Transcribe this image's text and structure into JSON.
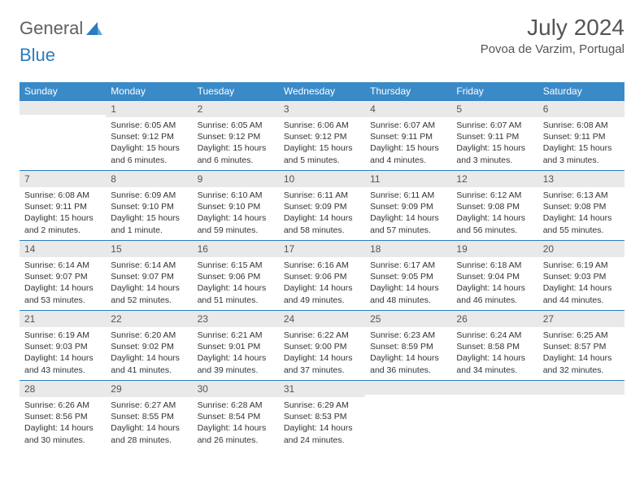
{
  "brand": {
    "part1": "General",
    "part2": "Blue"
  },
  "title": "July 2024",
  "location": "Povoa de Varzim, Portugal",
  "colors": {
    "header_bg": "#3a8ac8",
    "daynum_bg": "#e9e9e9",
    "border": "#2b7bbf",
    "text": "#333333"
  },
  "weekdays": [
    "Sunday",
    "Monday",
    "Tuesday",
    "Wednesday",
    "Thursday",
    "Friday",
    "Saturday"
  ],
  "weeks": [
    [
      {
        "n": "",
        "sr": "",
        "ss": "",
        "dl": ""
      },
      {
        "n": "1",
        "sr": "Sunrise: 6:05 AM",
        "ss": "Sunset: 9:12 PM",
        "dl": "Daylight: 15 hours and 6 minutes."
      },
      {
        "n": "2",
        "sr": "Sunrise: 6:05 AM",
        "ss": "Sunset: 9:12 PM",
        "dl": "Daylight: 15 hours and 6 minutes."
      },
      {
        "n": "3",
        "sr": "Sunrise: 6:06 AM",
        "ss": "Sunset: 9:12 PM",
        "dl": "Daylight: 15 hours and 5 minutes."
      },
      {
        "n": "4",
        "sr": "Sunrise: 6:07 AM",
        "ss": "Sunset: 9:11 PM",
        "dl": "Daylight: 15 hours and 4 minutes."
      },
      {
        "n": "5",
        "sr": "Sunrise: 6:07 AM",
        "ss": "Sunset: 9:11 PM",
        "dl": "Daylight: 15 hours and 3 minutes."
      },
      {
        "n": "6",
        "sr": "Sunrise: 6:08 AM",
        "ss": "Sunset: 9:11 PM",
        "dl": "Daylight: 15 hours and 3 minutes."
      }
    ],
    [
      {
        "n": "7",
        "sr": "Sunrise: 6:08 AM",
        "ss": "Sunset: 9:11 PM",
        "dl": "Daylight: 15 hours and 2 minutes."
      },
      {
        "n": "8",
        "sr": "Sunrise: 6:09 AM",
        "ss": "Sunset: 9:10 PM",
        "dl": "Daylight: 15 hours and 1 minute."
      },
      {
        "n": "9",
        "sr": "Sunrise: 6:10 AM",
        "ss": "Sunset: 9:10 PM",
        "dl": "Daylight: 14 hours and 59 minutes."
      },
      {
        "n": "10",
        "sr": "Sunrise: 6:11 AM",
        "ss": "Sunset: 9:09 PM",
        "dl": "Daylight: 14 hours and 58 minutes."
      },
      {
        "n": "11",
        "sr": "Sunrise: 6:11 AM",
        "ss": "Sunset: 9:09 PM",
        "dl": "Daylight: 14 hours and 57 minutes."
      },
      {
        "n": "12",
        "sr": "Sunrise: 6:12 AM",
        "ss": "Sunset: 9:08 PM",
        "dl": "Daylight: 14 hours and 56 minutes."
      },
      {
        "n": "13",
        "sr": "Sunrise: 6:13 AM",
        "ss": "Sunset: 9:08 PM",
        "dl": "Daylight: 14 hours and 55 minutes."
      }
    ],
    [
      {
        "n": "14",
        "sr": "Sunrise: 6:14 AM",
        "ss": "Sunset: 9:07 PM",
        "dl": "Daylight: 14 hours and 53 minutes."
      },
      {
        "n": "15",
        "sr": "Sunrise: 6:14 AM",
        "ss": "Sunset: 9:07 PM",
        "dl": "Daylight: 14 hours and 52 minutes."
      },
      {
        "n": "16",
        "sr": "Sunrise: 6:15 AM",
        "ss": "Sunset: 9:06 PM",
        "dl": "Daylight: 14 hours and 51 minutes."
      },
      {
        "n": "17",
        "sr": "Sunrise: 6:16 AM",
        "ss": "Sunset: 9:06 PM",
        "dl": "Daylight: 14 hours and 49 minutes."
      },
      {
        "n": "18",
        "sr": "Sunrise: 6:17 AM",
        "ss": "Sunset: 9:05 PM",
        "dl": "Daylight: 14 hours and 48 minutes."
      },
      {
        "n": "19",
        "sr": "Sunrise: 6:18 AM",
        "ss": "Sunset: 9:04 PM",
        "dl": "Daylight: 14 hours and 46 minutes."
      },
      {
        "n": "20",
        "sr": "Sunrise: 6:19 AM",
        "ss": "Sunset: 9:03 PM",
        "dl": "Daylight: 14 hours and 44 minutes."
      }
    ],
    [
      {
        "n": "21",
        "sr": "Sunrise: 6:19 AM",
        "ss": "Sunset: 9:03 PM",
        "dl": "Daylight: 14 hours and 43 minutes."
      },
      {
        "n": "22",
        "sr": "Sunrise: 6:20 AM",
        "ss": "Sunset: 9:02 PM",
        "dl": "Daylight: 14 hours and 41 minutes."
      },
      {
        "n": "23",
        "sr": "Sunrise: 6:21 AM",
        "ss": "Sunset: 9:01 PM",
        "dl": "Daylight: 14 hours and 39 minutes."
      },
      {
        "n": "24",
        "sr": "Sunrise: 6:22 AM",
        "ss": "Sunset: 9:00 PM",
        "dl": "Daylight: 14 hours and 37 minutes."
      },
      {
        "n": "25",
        "sr": "Sunrise: 6:23 AM",
        "ss": "Sunset: 8:59 PM",
        "dl": "Daylight: 14 hours and 36 minutes."
      },
      {
        "n": "26",
        "sr": "Sunrise: 6:24 AM",
        "ss": "Sunset: 8:58 PM",
        "dl": "Daylight: 14 hours and 34 minutes."
      },
      {
        "n": "27",
        "sr": "Sunrise: 6:25 AM",
        "ss": "Sunset: 8:57 PM",
        "dl": "Daylight: 14 hours and 32 minutes."
      }
    ],
    [
      {
        "n": "28",
        "sr": "Sunrise: 6:26 AM",
        "ss": "Sunset: 8:56 PM",
        "dl": "Daylight: 14 hours and 30 minutes."
      },
      {
        "n": "29",
        "sr": "Sunrise: 6:27 AM",
        "ss": "Sunset: 8:55 PM",
        "dl": "Daylight: 14 hours and 28 minutes."
      },
      {
        "n": "30",
        "sr": "Sunrise: 6:28 AM",
        "ss": "Sunset: 8:54 PM",
        "dl": "Daylight: 14 hours and 26 minutes."
      },
      {
        "n": "31",
        "sr": "Sunrise: 6:29 AM",
        "ss": "Sunset: 8:53 PM",
        "dl": "Daylight: 14 hours and 24 minutes."
      },
      {
        "n": "",
        "sr": "",
        "ss": "",
        "dl": ""
      },
      {
        "n": "",
        "sr": "",
        "ss": "",
        "dl": ""
      },
      {
        "n": "",
        "sr": "",
        "ss": "",
        "dl": ""
      }
    ]
  ]
}
